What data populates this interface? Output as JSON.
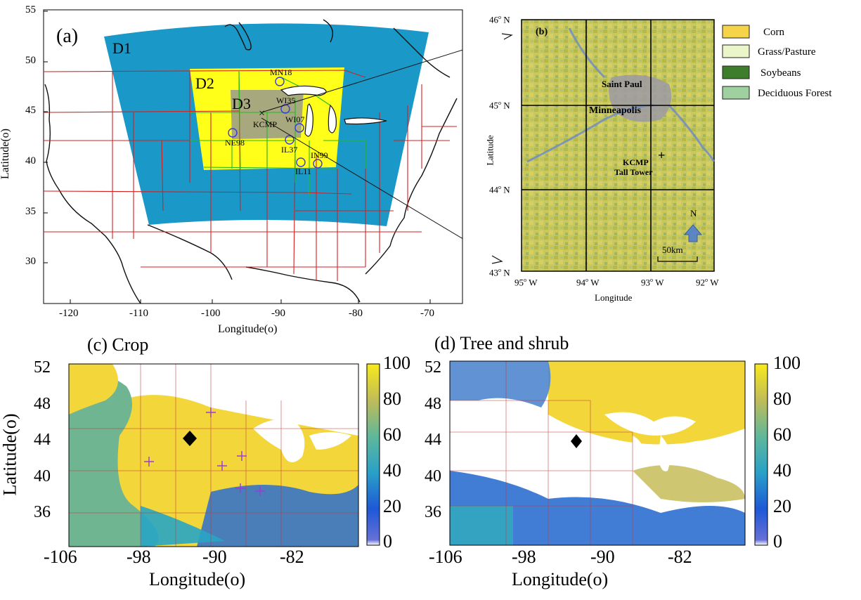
{
  "panel_a": {
    "label": "(a)",
    "x_ticks": [
      "-120",
      "-110",
      "-100",
      "-90",
      "-80",
      "-70"
    ],
    "y_ticks": [
      "55",
      "50",
      "45",
      "40",
      "35",
      "30"
    ],
    "xlabel": "Longitude(o)",
    "ylabel": "Latitude(o)",
    "domains": [
      "D1",
      "D2",
      "D3"
    ],
    "sites": [
      "MN18",
      "WI35",
      "KCMP",
      "WI07",
      "NE98",
      "IL37",
      "IN99",
      "IL11"
    ],
    "colors": {
      "d1": "#1a99c8",
      "d2": "#ffff1a",
      "d3": "#a8a87e",
      "state_borders": "#d42020",
      "midwest_borders": "#22bb22",
      "coast": "#000000"
    }
  },
  "panel_b": {
    "label": "(b)",
    "lat_ticks": [
      "46",
      "45",
      "44",
      "43"
    ],
    "lon_ticks": [
      "95",
      "94",
      "93",
      "92"
    ],
    "xlabel": "Longitude",
    "ylabel": "Latitude",
    "places": [
      "Saint Paul",
      "Minneapolis",
      "KCMP",
      "Tall Tower"
    ],
    "north": "N",
    "scale": "50km",
    "legend": [
      {
        "label": "Corn",
        "color": "#f6d44a"
      },
      {
        "label": "Grass/Pasture",
        "color": "#eaf5c8"
      },
      {
        "label": "Soybeans",
        "color": "#3e7d2c"
      },
      {
        "label": "Deciduous Forest",
        "color": "#9fd09f"
      }
    ]
  },
  "panel_c": {
    "title": "(c) Crop",
    "x_ticks": [
      "-106",
      "-98",
      "-90",
      "-82"
    ],
    "y_ticks": [
      "52",
      "48",
      "44",
      "40",
      "36"
    ],
    "xlabel": "Longitude(o)",
    "ylabel": "Latitude(o)",
    "colorbar_ticks": [
      "100",
      "80",
      "60",
      "40",
      "20",
      "0"
    ]
  },
  "panel_d": {
    "title": "(d) Tree and shrub",
    "x_ticks": [
      "-106",
      "-98",
      "-90",
      "-82"
    ],
    "y_ticks": [
      "52",
      "48",
      "44",
      "40",
      "36"
    ],
    "xlabel": "Longitude(o)",
    "colorbar_ticks": [
      "100",
      "80",
      "60",
      "40",
      "20",
      "0"
    ]
  }
}
